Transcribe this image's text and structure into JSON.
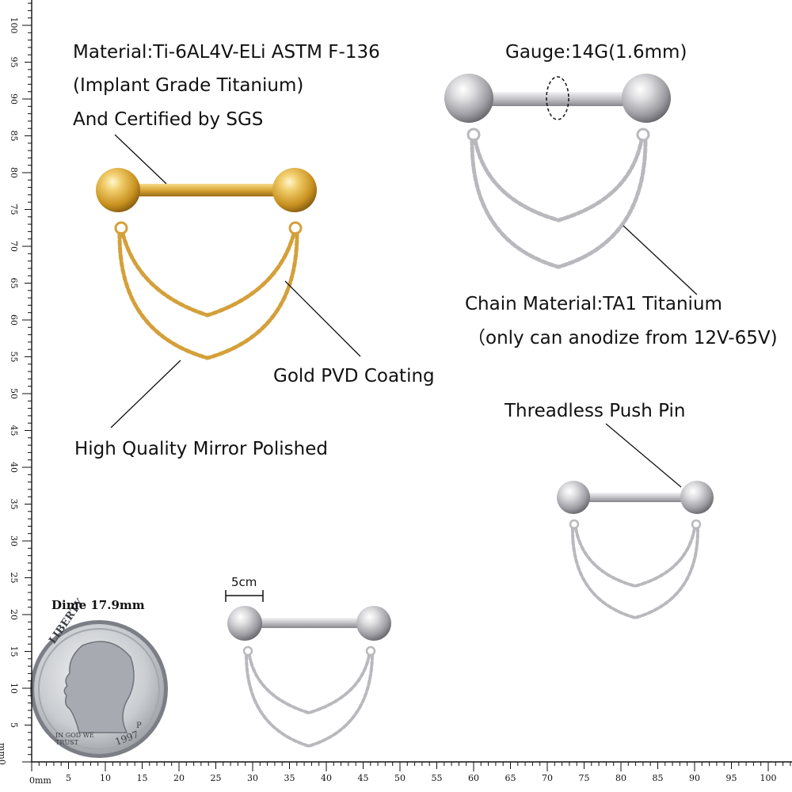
{
  "labels": {
    "material_line1": "Material:Ti-6AL4V-ELi ASTM F-136",
    "material_line2": "(Implant Grade Titanium)",
    "material_line3": "And Certified by SGS",
    "gold_coating": "Gold PVD Coating",
    "mirror_polished": "High Quality Mirror Polished",
    "gauge": "Gauge:14G(1.6mm)",
    "chain_material_line1": "Chain Material:TA1 Titanium",
    "chain_material_line2": "（only can anodize from 12V-65V)",
    "push_pin": "Threadless Push Pin",
    "scale_5cm": "5cm",
    "dime": "Dime 17.9mm"
  },
  "coin": {
    "word_liberty": "LIBERTY",
    "word_motto": "IN GOD WE TRUST",
    "year": "1997",
    "mint": "P"
  },
  "ruler": {
    "unit_label": "0mm",
    "bottom_ticks": [
      "5",
      "10",
      "15",
      "20",
      "25",
      "30",
      "35",
      "40",
      "45",
      "50",
      "55",
      "60",
      "65",
      "70",
      "75",
      "80",
      "85",
      "90",
      "95",
      "100"
    ],
    "left_ticks": [
      "5",
      "10",
      "15",
      "20",
      "25",
      "30",
      "35",
      "40",
      "45",
      "50",
      "55",
      "60",
      "65",
      "70",
      "75",
      "80",
      "85",
      "90",
      "95",
      "100"
    ],
    "left_unit_label": "mm0"
  },
  "colors": {
    "gold": "#d4a03a",
    "silver": "#c9c9cc",
    "ink": "#111111"
  },
  "icons": {
    "gold_barbell": "gold-nipple-barbell-with-double-chain",
    "silver_barbell": "silver-nipple-barbell-with-double-chain",
    "dime": "us-dime-coin"
  }
}
